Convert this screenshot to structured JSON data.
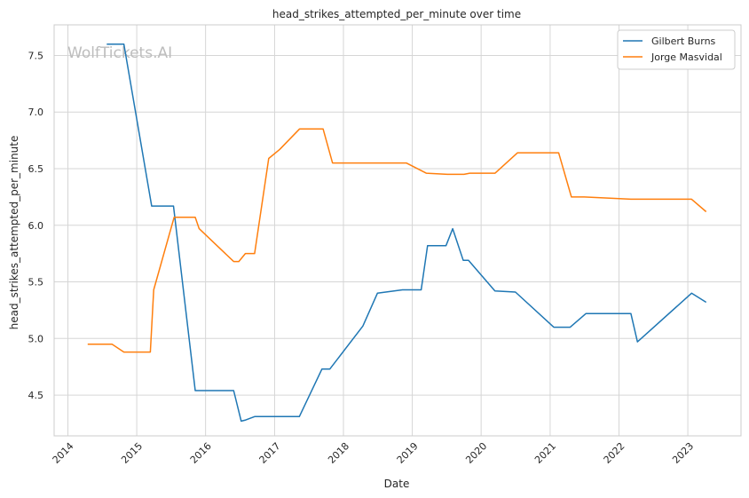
{
  "chart_data": {
    "type": "line",
    "title": "head_strikes_attempted_per_minute over time",
    "xlabel": "Date",
    "ylabel": "head_strikes_attempted_per_minute",
    "watermark": "WolfTickets.AI",
    "x_ticks": [
      "2014",
      "2015",
      "2016",
      "2017",
      "2018",
      "2019",
      "2020",
      "2021",
      "2022",
      "2023"
    ],
    "y_ticks": [
      "4.5",
      "5.0",
      "5.5",
      "6.0",
      "6.5",
      "7.0",
      "7.5"
    ],
    "xlim": [
      "2013-10-20",
      "2023-10-10"
    ],
    "ylim": [
      4.14,
      7.77
    ],
    "grid": true,
    "legend_position": "top-right",
    "series": [
      {
        "name": "Gilbert Burns",
        "color": "#1f77b4",
        "x": [
          "2014-07-26",
          "2014-10-25",
          "2015-03-21",
          "2015-07-15",
          "2015-11-07",
          "2016-05-29",
          "2016-07-08",
          "2016-08-01",
          "2016-09-17",
          "2017-05-12",
          "2017-09-09",
          "2017-10-21",
          "2018-04-14",
          "2018-06-30",
          "2018-11-10",
          "2019-02-17",
          "2019-03-23",
          "2019-06-29",
          "2019-08-03",
          "2019-09-28",
          "2019-10-26",
          "2020-03-14",
          "2020-07-01",
          "2021-01-20",
          "2021-04-17",
          "2021-07-10",
          "2022-03-05",
          "2022-04-09",
          "2023-01-21",
          "2023-04-08"
        ],
        "y": [
          7.6,
          7.6,
          6.17,
          6.17,
          4.54,
          4.54,
          4.27,
          4.28,
          4.31,
          4.31,
          4.73,
          4.73,
          5.11,
          5.4,
          5.43,
          5.43,
          5.82,
          5.82,
          5.97,
          5.69,
          5.69,
          5.42,
          5.41,
          5.1,
          5.1,
          5.22,
          5.22,
          4.97,
          5.4,
          5.32
        ]
      },
      {
        "name": "Jorge Masvidal",
        "color": "#ff7f0e",
        "x": [
          "2014-04-16",
          "2014-08-23",
          "2014-10-25",
          "2015-03-14",
          "2015-04-01",
          "2015-07-18",
          "2015-11-07",
          "2015-11-28",
          "2016-05-29",
          "2016-06-25",
          "2016-07-30",
          "2016-09-17",
          "2016-12-01",
          "2017-01-28",
          "2017-05-13",
          "2017-09-15",
          "2017-11-04",
          "2018-03-14",
          "2018-11-30",
          "2019-03-16",
          "2019-07-06",
          "2019-10-02",
          "2019-11-02",
          "2020-03-15",
          "2020-07-12",
          "2021-02-15",
          "2021-04-24",
          "2021-07-01",
          "2022-03-05",
          "2023-01-21",
          "2023-04-08"
        ],
        "y": [
          4.95,
          4.95,
          4.88,
          4.88,
          5.43,
          6.07,
          6.07,
          5.97,
          5.68,
          5.68,
          5.75,
          5.75,
          6.59,
          6.67,
          6.85,
          6.85,
          6.55,
          6.55,
          6.55,
          6.46,
          6.45,
          6.45,
          6.46,
          6.46,
          6.64,
          6.64,
          6.25,
          6.25,
          6.23,
          6.23,
          6.12
        ]
      }
    ]
  }
}
